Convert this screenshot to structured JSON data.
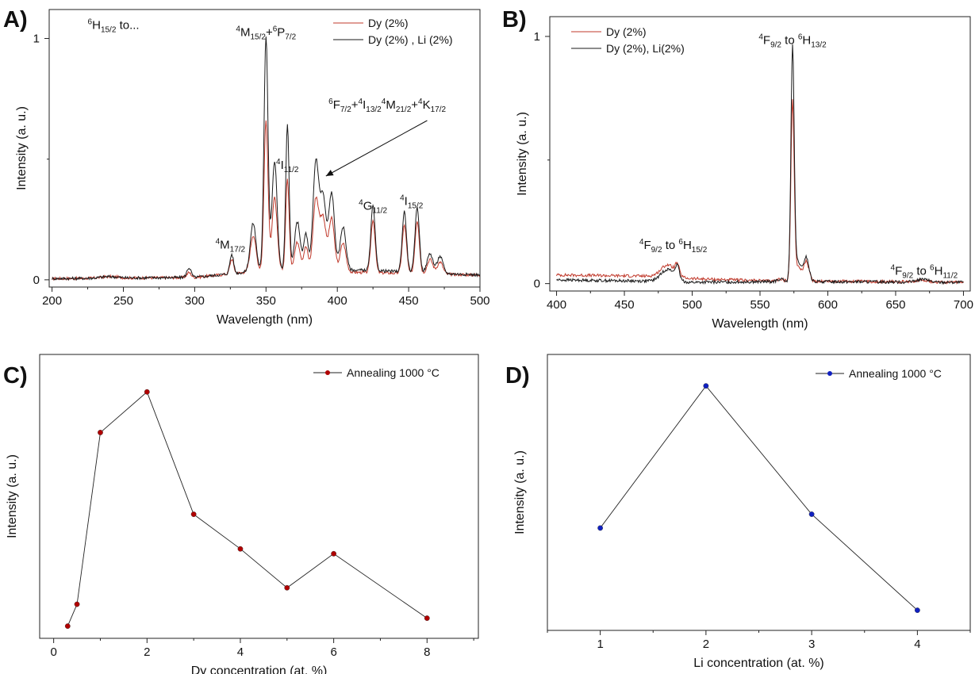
{
  "chart_data": [
    {
      "panel_id": "A",
      "letter": "A)",
      "type": "line",
      "xlabel": "Wavelength (nm)",
      "ylabel": "Intensity (a. u.)",
      "xlim": [
        198,
        500
      ],
      "ylim": [
        -0.03,
        1.12
      ],
      "xticks": [
        200,
        250,
        300,
        350,
        400,
        450,
        500
      ],
      "yticks": [
        0,
        1
      ],
      "legend": {
        "position": "top-right",
        "entries": [
          {
            "label": "Dy (2%)",
            "color": "#c0392b"
          },
          {
            "label": "Dy (2%) , Li (2%)",
            "color": "#1a1a1a"
          }
        ]
      },
      "series": [
        {
          "name": "Dy (2%)",
          "color": "#c0392b",
          "peak_scale": 0.66,
          "baseline": [
            [
              200,
              0.005
            ],
            [
              300,
              0.01
            ],
            [
              350,
              0.04
            ],
            [
              420,
              0.03
            ],
            [
              500,
              0.02
            ]
          ],
          "peaks": [
            [
              240,
              0.006,
              6
            ],
            [
              296,
              0.02,
              1.5
            ],
            [
              326,
              0.06,
              1.3
            ],
            [
              341,
              0.15,
              2
            ],
            [
              350,
              0.62,
              1.4
            ],
            [
              356,
              0.3,
              1.8
            ],
            [
              365,
              0.38,
              1.2
            ],
            [
              372,
              0.12,
              2
            ],
            [
              378,
              0.1,
              1.5
            ],
            [
              385,
              0.3,
              2
            ],
            [
              390,
              0.22,
              2
            ],
            [
              396,
              0.22,
              2
            ],
            [
              404,
              0.12,
              2
            ],
            [
              425,
              0.22,
              1.5
            ],
            [
              447,
              0.2,
              1.5
            ],
            [
              456,
              0.22,
              1.5
            ],
            [
              465,
              0.06,
              2
            ],
            [
              472,
              0.05,
              2
            ]
          ]
        },
        {
          "name": "Dy (2%) , Li (2%)",
          "color": "#1a1a1a",
          "peak_scale": 1,
          "baseline": [
            [
              200,
              0.005
            ],
            [
              300,
              0.01
            ],
            [
              350,
              0.04
            ],
            [
              420,
              0.04
            ],
            [
              500,
              0.02
            ]
          ],
          "peaks": [
            [
              240,
              0.006,
              6
            ],
            [
              296,
              0.04,
              1.5
            ],
            [
              326,
              0.08,
              1.3
            ],
            [
              341,
              0.2,
              2
            ],
            [
              350,
              0.97,
              1.4
            ],
            [
              356,
              0.45,
              1.8
            ],
            [
              365,
              0.6,
              1.2
            ],
            [
              372,
              0.2,
              2
            ],
            [
              378,
              0.15,
              1.5
            ],
            [
              385,
              0.45,
              2
            ],
            [
              390,
              0.3,
              2
            ],
            [
              396,
              0.32,
              2
            ],
            [
              404,
              0.18,
              2
            ],
            [
              425,
              0.27,
              1.5
            ],
            [
              447,
              0.25,
              1.5
            ],
            [
              456,
              0.27,
              1.5
            ],
            [
              465,
              0.08,
              2
            ],
            [
              472,
              0.07,
              2
            ]
          ]
        }
      ],
      "annotations": [
        {
          "id": "transition-from",
          "parts": [
            [
              "sup",
              "6"
            ],
            [
              "n",
              "H"
            ],
            [
              "sub",
              "15/2"
            ],
            [
              "n",
              " to..."
            ]
          ],
          "x": 225,
          "y": 1.04
        },
        {
          "id": "M15-P7",
          "parts": [
            [
              "sup",
              "4"
            ],
            [
              "n",
              "M"
            ],
            [
              "sub",
              "15/2"
            ],
            [
              "n",
              "+"
            ],
            [
              "sup",
              "6"
            ],
            [
              "n",
              "P"
            ],
            [
              "sub",
              "7/2"
            ]
          ],
          "x": 350,
          "y": 1.01
        },
        {
          "id": "F-I-M-K",
          "parts": [
            [
              "sup",
              "6"
            ],
            [
              "n",
              "F"
            ],
            [
              "sub",
              "7/2"
            ],
            [
              "n",
              "+"
            ],
            [
              "sup",
              "4"
            ],
            [
              "n",
              "I"
            ],
            [
              "sub",
              "13/2"
            ],
            [
              "sup",
              "4"
            ],
            [
              "n",
              "M"
            ],
            [
              "sub",
              "21/2"
            ],
            [
              "n",
              "+"
            ],
            [
              "sup",
              "4"
            ],
            [
              "n",
              "K"
            ],
            [
              "sub",
              "17/2"
            ]
          ],
          "x": 435,
          "y": 0.71
        },
        {
          "id": "I11",
          "parts": [
            [
              "sup",
              "4"
            ],
            [
              "n",
              "I"
            ],
            [
              "sub",
              "11/2"
            ]
          ],
          "x": 365,
          "y": 0.46
        },
        {
          "id": "G11",
          "parts": [
            [
              "sup",
              "4"
            ],
            [
              "n",
              "G"
            ],
            [
              "sub",
              "11/2"
            ]
          ],
          "x": 425,
          "y": 0.29
        },
        {
          "id": "I15",
          "parts": [
            [
              "sup",
              "4"
            ],
            [
              "n",
              "I"
            ],
            [
              "sub",
              "15/2"
            ]
          ],
          "x": 452,
          "y": 0.31
        },
        {
          "id": "M17",
          "parts": [
            [
              "sup",
              "4"
            ],
            [
              "n",
              "M"
            ],
            [
              "sub",
              "17/2"
            ]
          ],
          "x": 325,
          "y": 0.13
        }
      ],
      "arrow": {
        "from": [
          463,
          0.66
        ],
        "to": [
          392,
          0.43
        ]
      }
    },
    {
      "panel_id": "B",
      "letter": "B)",
      "type": "line",
      "xlabel": "Wavelength (nm)",
      "ylabel": "Intensity (a. u.)",
      "xlim": [
        395,
        705
      ],
      "ylim": [
        -0.03,
        1.08
      ],
      "xticks": [
        400,
        450,
        500,
        550,
        600,
        650,
        700
      ],
      "yticks": [
        0,
        1
      ],
      "legend": {
        "position": "top-left",
        "entries": [
          {
            "label": "Dy (2%)",
            "color": "#c0392b"
          },
          {
            "label": "Dy (2%), Li(2%)",
            "color": "#1a1a1a"
          }
        ]
      },
      "series": [
        {
          "name": "Dy (2%)",
          "color": "#c0392b",
          "peak_scale": 1,
          "baseline": [
            [
              400,
              0.035
            ],
            [
              470,
              0.03
            ],
            [
              500,
              0.02
            ],
            [
              560,
              0.01
            ],
            [
              600,
              0.01
            ],
            [
              700,
              0.005
            ]
          ],
          "peaks": [
            [
              482,
              0.05,
              5
            ],
            [
              489,
              0.04,
              1.5
            ],
            [
              565,
              0.01,
              2
            ],
            [
              574,
              0.73,
              1.2
            ],
            [
              578,
              0.06,
              2
            ],
            [
              584,
              0.08,
              2
            ],
            [
              670,
              0.008,
              4
            ]
          ]
        },
        {
          "name": "Dy (2%), Li(2%)",
          "color": "#1a1a1a",
          "peak_scale": 1,
          "baseline": [
            [
              400,
              0.015
            ],
            [
              470,
              0.01
            ],
            [
              500,
              0.005
            ],
            [
              560,
              0.008
            ],
            [
              600,
              0.008
            ],
            [
              700,
              0.005
            ]
          ],
          "peaks": [
            [
              482,
              0.05,
              5
            ],
            [
              489,
              0.05,
              1.5
            ],
            [
              565,
              0.01,
              2
            ],
            [
              574,
              0.95,
              1.2
            ],
            [
              578,
              0.08,
              2
            ],
            [
              584,
              0.1,
              2
            ],
            [
              670,
              0.012,
              4
            ]
          ]
        }
      ],
      "annotations": [
        {
          "id": "F9-H13",
          "parts": [
            [
              "sup",
              "4"
            ],
            [
              "n",
              "F"
            ],
            [
              "sub",
              "9/2"
            ],
            [
              "n",
              " to "
            ],
            [
              "sup",
              "6"
            ],
            [
              "n",
              "H"
            ],
            [
              "sub",
              "13/2"
            ]
          ],
          "x": 574,
          "y": 0.97
        },
        {
          "id": "F9-H15",
          "parts": [
            [
              "sup",
              "4"
            ],
            [
              "n",
              "F"
            ],
            [
              "sub",
              "9/2"
            ],
            [
              "n",
              " to "
            ],
            [
              "sup",
              "6"
            ],
            [
              "n",
              "H"
            ],
            [
              "sub",
              "15/2"
            ]
          ],
          "x": 486,
          "y": 0.14
        },
        {
          "id": "F9-H11",
          "parts": [
            [
              "sup",
              "4"
            ],
            [
              "n",
              "F"
            ],
            [
              "sub",
              "9/2"
            ],
            [
              "n",
              " to "
            ],
            [
              "sup",
              "6"
            ],
            [
              "n",
              "H"
            ],
            [
              "sub",
              "11/2"
            ]
          ],
          "x": 671,
          "y": 0.035
        }
      ]
    },
    {
      "panel_id": "C",
      "letter": "C)",
      "type": "line",
      "xlabel": "Dy concentration (at. %)",
      "ylabel": "Intensity (a. u.)",
      "xlim": [
        -0.3,
        9.1
      ],
      "ylim": [
        0,
        1
      ],
      "xticks": [
        0,
        2,
        4,
        6,
        8
      ],
      "legend": {
        "position": "top-right",
        "entries": [
          {
            "label": "Annealing 1000 °C",
            "color": "#b00000"
          }
        ]
      },
      "series": [
        {
          "name": "Annealing 1000 °C",
          "color": "#b00000",
          "x": [
            0.3,
            0.5,
            1,
            2,
            3,
            4,
            5,
            6,
            8
          ],
          "y": [
            0.043,
            0.12,
            0.725,
            0.868,
            0.437,
            0.315,
            0.178,
            0.298,
            0.071
          ]
        }
      ]
    },
    {
      "panel_id": "D",
      "letter": "D)",
      "type": "line",
      "xlabel": "Li concentration (at. %)",
      "ylabel": "Intensity (a. u.)",
      "xlim": [
        0.5,
        4.5
      ],
      "ylim": [
        0,
        1
      ],
      "xticks": [
        1,
        2,
        3,
        4
      ],
      "legend": {
        "position": "top-right",
        "entries": [
          {
            "label": "Annealing 1000 °C",
            "color": "#1020c0"
          }
        ]
      },
      "series": [
        {
          "name": "Annealing 1000 °C",
          "color": "#1020c0",
          "x": [
            1,
            2,
            3,
            4
          ],
          "y": [
            0.371,
            0.886,
            0.421,
            0.073
          ]
        }
      ]
    }
  ]
}
